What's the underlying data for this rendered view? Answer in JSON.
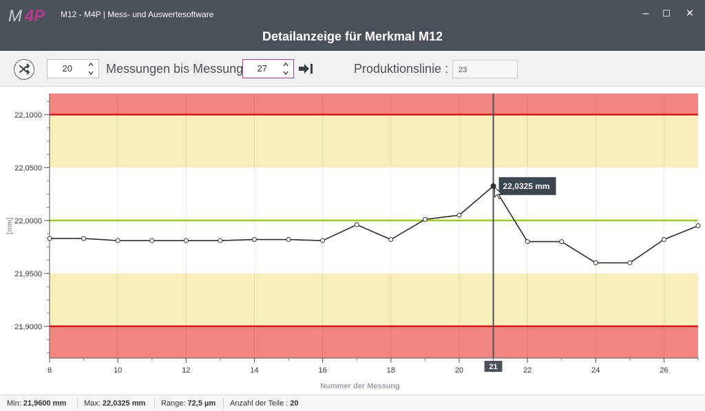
{
  "window": {
    "title": "M12 - M4P | Mess- und Auswertesoftware",
    "logo_text": "M4P",
    "page_title": "Detailanzeige für Merkmal M12",
    "controls": {
      "minimize": "–",
      "maximize": "☐",
      "close": "✕"
    }
  },
  "toolbar": {
    "count_value": "20",
    "label_between": "Messungen bis Messung",
    "to_value": "27",
    "prod_label": "Produktionslinie :",
    "prod_value": "23"
  },
  "chart_data": {
    "type": "line",
    "xlabel": "Nummer der Messung",
    "ylabel": "[mm]",
    "xlim": [
      8,
      27
    ],
    "ylim": [
      21.87,
      22.12
    ],
    "x_ticks": [
      8,
      10,
      12,
      14,
      16,
      18,
      20,
      22,
      24,
      26
    ],
    "x_tick_labels": [
      "8",
      "10",
      "12",
      "14",
      "16",
      "18",
      "20",
      "22",
      "24",
      "26"
    ],
    "y_ticks": [
      21.9,
      21.95,
      22.0,
      22.05,
      22.1
    ],
    "y_tick_labels": [
      "21,9000",
      "21,9500",
      "22,0000",
      "22,0500",
      "22,1000"
    ],
    "x": [
      8,
      9,
      10,
      11,
      12,
      13,
      14,
      15,
      16,
      17,
      18,
      19,
      20,
      21,
      22,
      23,
      24,
      25,
      26,
      27
    ],
    "values": [
      21.983,
      21.983,
      21.981,
      21.981,
      21.981,
      21.981,
      21.982,
      21.982,
      21.981,
      21.996,
      21.982,
      22.001,
      22.005,
      22.0325,
      21.98,
      21.98,
      21.96,
      21.96,
      21.982,
      21.995
    ],
    "upper_tolerance": 22.1,
    "lower_tolerance": 21.9,
    "upper_warning": 22.05,
    "lower_warning": 21.95,
    "nominal": 22.0,
    "cursor": {
      "x": 21,
      "x_label": "21",
      "tooltip": "22,0325 mm"
    },
    "colors": {
      "alarm_zone": "#f28680",
      "warning_zone": "#f7eebb",
      "tolerance_line": "#e0151a",
      "nominal_line": "#9ccc1e",
      "series": "#2a2a2a",
      "cursor": "#4a5158"
    }
  },
  "status": {
    "min_label": "Min:",
    "min_value": "21,9600 mm",
    "max_label": "Max:",
    "max_value": "22,0325 mm",
    "range_label": "Range:",
    "range_value": "72,5 µm",
    "count_label": "Anzahl der Teile :",
    "count_value": "20"
  }
}
